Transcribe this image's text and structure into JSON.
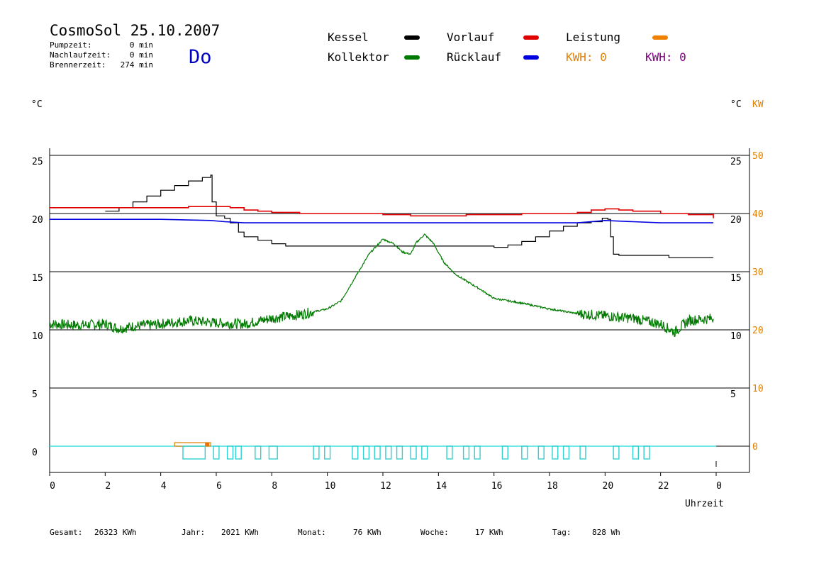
{
  "header": {
    "title": "CosmoSol 25.10.2007",
    "weekday": "Do",
    "stats": [
      {
        "label": "Pumpzeit:",
        "value": "0 min"
      },
      {
        "label": "Nachlaufzeit:",
        "value": "0 min"
      },
      {
        "label": "Brennerzeit:",
        "value": "274 min"
      }
    ]
  },
  "legend": {
    "items": [
      {
        "label": "Kessel",
        "color": "#000000"
      },
      {
        "label": "Vorlauf",
        "color": "#e00000"
      },
      {
        "label": "Leistung",
        "color": "#f08000"
      },
      {
        "label": "Kollektor",
        "color": "#007a00"
      },
      {
        "label": "Rücklauf",
        "color": "#0000e0"
      }
    ],
    "kwh": [
      {
        "text": "KWH: 0",
        "color": "#e08000"
      },
      {
        "text": "KWH: 0",
        "color": "#800080"
      }
    ]
  },
  "footer": [
    {
      "label": "Gesamt:",
      "value": "26323 KWh"
    },
    {
      "label": "Jahr:",
      "value": "2021 KWh"
    },
    {
      "label": "Monat:",
      "value": "76 KWh"
    },
    {
      "label": "Woche:",
      "value": "17 KWh"
    },
    {
      "label": "Tag:",
      "value": "828 Wh"
    }
  ],
  "chart_data": {
    "type": "line",
    "xlabel": "Uhrzeit",
    "ylabel_left": "°C",
    "ylabel_right": "°C",
    "ylabel_right2": "KW",
    "xlim": [
      0,
      24
    ],
    "ylim_left": [
      -2,
      26
    ],
    "ylim_right_kw": [
      -4,
      52
    ],
    "x_ticks": [
      "0",
      "2",
      "4",
      "6",
      "8",
      "10",
      "12",
      "14",
      "16",
      "18",
      "20",
      "22",
      "0"
    ],
    "y_ticks_left": [
      0,
      5,
      10,
      15,
      20,
      25
    ],
    "y_ticks_right_temp": [
      5,
      10,
      15,
      20,
      25
    ],
    "y_ticks_right_kw": [
      0,
      10,
      20,
      30,
      40,
      50
    ],
    "grid": "horizontal",
    "series": [
      {
        "name": "Kessel",
        "color": "#000000",
        "step": true,
        "points": [
          [
            2.0,
            20.2
          ],
          [
            2.5,
            20.5
          ],
          [
            3.0,
            21.0
          ],
          [
            3.5,
            21.5
          ],
          [
            4.0,
            22.0
          ],
          [
            4.5,
            22.4
          ],
          [
            5.0,
            22.8
          ],
          [
            5.5,
            23.1
          ],
          [
            5.8,
            23.3
          ],
          [
            5.85,
            21.0
          ],
          [
            6.0,
            19.8
          ],
          [
            6.3,
            19.6
          ],
          [
            6.5,
            19.2
          ],
          [
            6.8,
            18.4
          ],
          [
            7.0,
            18.0
          ],
          [
            7.5,
            17.7
          ],
          [
            8.0,
            17.4
          ],
          [
            8.5,
            17.2
          ],
          [
            9.0,
            17.2
          ],
          [
            10.0,
            17.2
          ],
          [
            12.0,
            17.2
          ],
          [
            14.0,
            17.2
          ],
          [
            15.7,
            17.2
          ],
          [
            16.0,
            17.1
          ],
          [
            16.5,
            17.3
          ],
          [
            17.0,
            17.6
          ],
          [
            17.5,
            18.0
          ],
          [
            18.0,
            18.5
          ],
          [
            18.5,
            18.9
          ],
          [
            19.0,
            19.2
          ],
          [
            19.5,
            19.3
          ],
          [
            19.9,
            19.6
          ],
          [
            20.1,
            19.5
          ],
          [
            20.2,
            18.0
          ],
          [
            20.3,
            16.5
          ],
          [
            20.5,
            16.4
          ],
          [
            21.0,
            16.4
          ],
          [
            22.0,
            16.4
          ],
          [
            22.3,
            16.2
          ],
          [
            23.0,
            16.2
          ],
          [
            23.9,
            16.2
          ]
        ]
      },
      {
        "name": "Vorlauf",
        "color": "#e00000",
        "step": true,
        "points": [
          [
            0.0,
            20.5
          ],
          [
            3.0,
            20.5
          ],
          [
            5.0,
            20.6
          ],
          [
            6.0,
            20.6
          ],
          [
            6.5,
            20.5
          ],
          [
            7.0,
            20.3
          ],
          [
            7.5,
            20.2
          ],
          [
            8.0,
            20.1
          ],
          [
            9.0,
            20.0
          ],
          [
            10.0,
            20.0
          ],
          [
            12.0,
            19.9
          ],
          [
            13.0,
            19.8
          ],
          [
            14.0,
            19.8
          ],
          [
            15.0,
            19.9
          ],
          [
            16.0,
            19.9
          ],
          [
            17.0,
            20.0
          ],
          [
            18.0,
            20.0
          ],
          [
            19.0,
            20.1
          ],
          [
            19.5,
            20.3
          ],
          [
            20.0,
            20.4
          ],
          [
            20.5,
            20.3
          ],
          [
            21.0,
            20.2
          ],
          [
            22.0,
            20.0
          ],
          [
            23.0,
            19.9
          ],
          [
            23.9,
            19.6
          ]
        ]
      },
      {
        "name": "Rücklauf",
        "color": "#0000e0",
        "step": false,
        "points": [
          [
            0.0,
            19.5
          ],
          [
            2.0,
            19.5
          ],
          [
            4.0,
            19.5
          ],
          [
            5.8,
            19.4
          ],
          [
            6.3,
            19.3
          ],
          [
            7.0,
            19.2
          ],
          [
            8.0,
            19.2
          ],
          [
            10.0,
            19.2
          ],
          [
            12.0,
            19.2
          ],
          [
            14.0,
            19.2
          ],
          [
            16.0,
            19.2
          ],
          [
            18.0,
            19.2
          ],
          [
            19.0,
            19.2
          ],
          [
            19.5,
            19.3
          ],
          [
            20.0,
            19.4
          ],
          [
            21.0,
            19.3
          ],
          [
            22.0,
            19.2
          ],
          [
            23.9,
            19.2
          ]
        ]
      },
      {
        "name": "Kollektor",
        "color": "#007a00",
        "noise": true,
        "points": [
          [
            0.0,
            10.5
          ],
          [
            1.0,
            10.4
          ],
          [
            2.0,
            10.5
          ],
          [
            2.5,
            10.1
          ],
          [
            3.0,
            10.3
          ],
          [
            4.0,
            10.5
          ],
          [
            5.0,
            10.8
          ],
          [
            6.0,
            10.6
          ],
          [
            7.0,
            10.5
          ],
          [
            8.0,
            11.0
          ],
          [
            9.0,
            11.3
          ],
          [
            10.0,
            11.8
          ],
          [
            10.5,
            12.5
          ],
          [
            11.0,
            14.5
          ],
          [
            11.5,
            16.5
          ],
          [
            12.0,
            17.8
          ],
          [
            12.4,
            17.4
          ],
          [
            12.7,
            16.7
          ],
          [
            13.0,
            16.5
          ],
          [
            13.2,
            17.5
          ],
          [
            13.5,
            18.2
          ],
          [
            13.8,
            17.5
          ],
          [
            14.2,
            15.8
          ],
          [
            14.6,
            14.8
          ],
          [
            15.0,
            14.2
          ],
          [
            15.5,
            13.5
          ],
          [
            16.0,
            12.7
          ],
          [
            17.0,
            12.3
          ],
          [
            18.0,
            11.8
          ],
          [
            19.0,
            11.4
          ],
          [
            20.0,
            11.2
          ],
          [
            21.0,
            11.0
          ],
          [
            22.0,
            10.5
          ],
          [
            22.5,
            9.8
          ],
          [
            23.0,
            10.8
          ],
          [
            23.9,
            11.0
          ]
        ]
      }
    ],
    "burner_pulses": [
      [
        4.8,
        5.6
      ],
      [
        5.9,
        6.1
      ],
      [
        6.4,
        6.6
      ],
      [
        6.7,
        6.9
      ],
      [
        7.4,
        7.6
      ],
      [
        7.9,
        8.2
      ],
      [
        9.5,
        9.7
      ],
      [
        9.9,
        10.1
      ],
      [
        10.9,
        11.1
      ],
      [
        11.3,
        11.5
      ],
      [
        11.7,
        11.9
      ],
      [
        12.1,
        12.3
      ],
      [
        12.5,
        12.7
      ],
      [
        13.0,
        13.2
      ],
      [
        13.4,
        13.6
      ],
      [
        14.3,
        14.5
      ],
      [
        14.9,
        15.1
      ],
      [
        15.3,
        15.5
      ],
      [
        16.3,
        16.5
      ],
      [
        17.0,
        17.2
      ],
      [
        17.6,
        17.8
      ],
      [
        18.1,
        18.3
      ],
      [
        18.5,
        18.7
      ],
      [
        19.1,
        19.3
      ],
      [
        20.3,
        20.5
      ],
      [
        21.0,
        21.2
      ],
      [
        21.4,
        21.6
      ]
    ],
    "pump_window": [
      4.5,
      5.8
    ]
  }
}
